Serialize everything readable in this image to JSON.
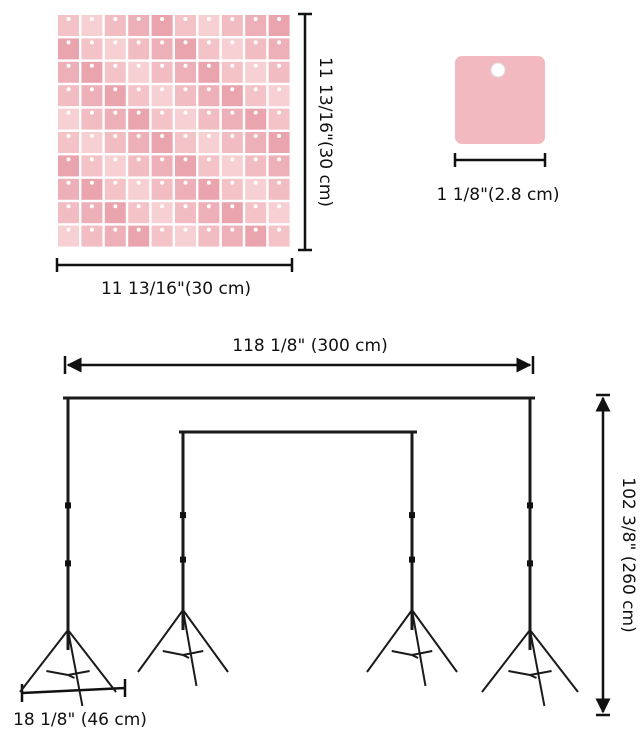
{
  "panel": {
    "width_label": "11 13/16\"(30 cm)",
    "height_label": "11 13/16\"(30 cm)"
  },
  "sequin": {
    "size_label": "1 1/8\"(2.8 cm)"
  },
  "stand": {
    "width_label": "118 1/8\" (300 cm)",
    "height_label": "102 3/8\" (260 cm)",
    "base_label": "18 1/8\" (46 cm)"
  }
}
